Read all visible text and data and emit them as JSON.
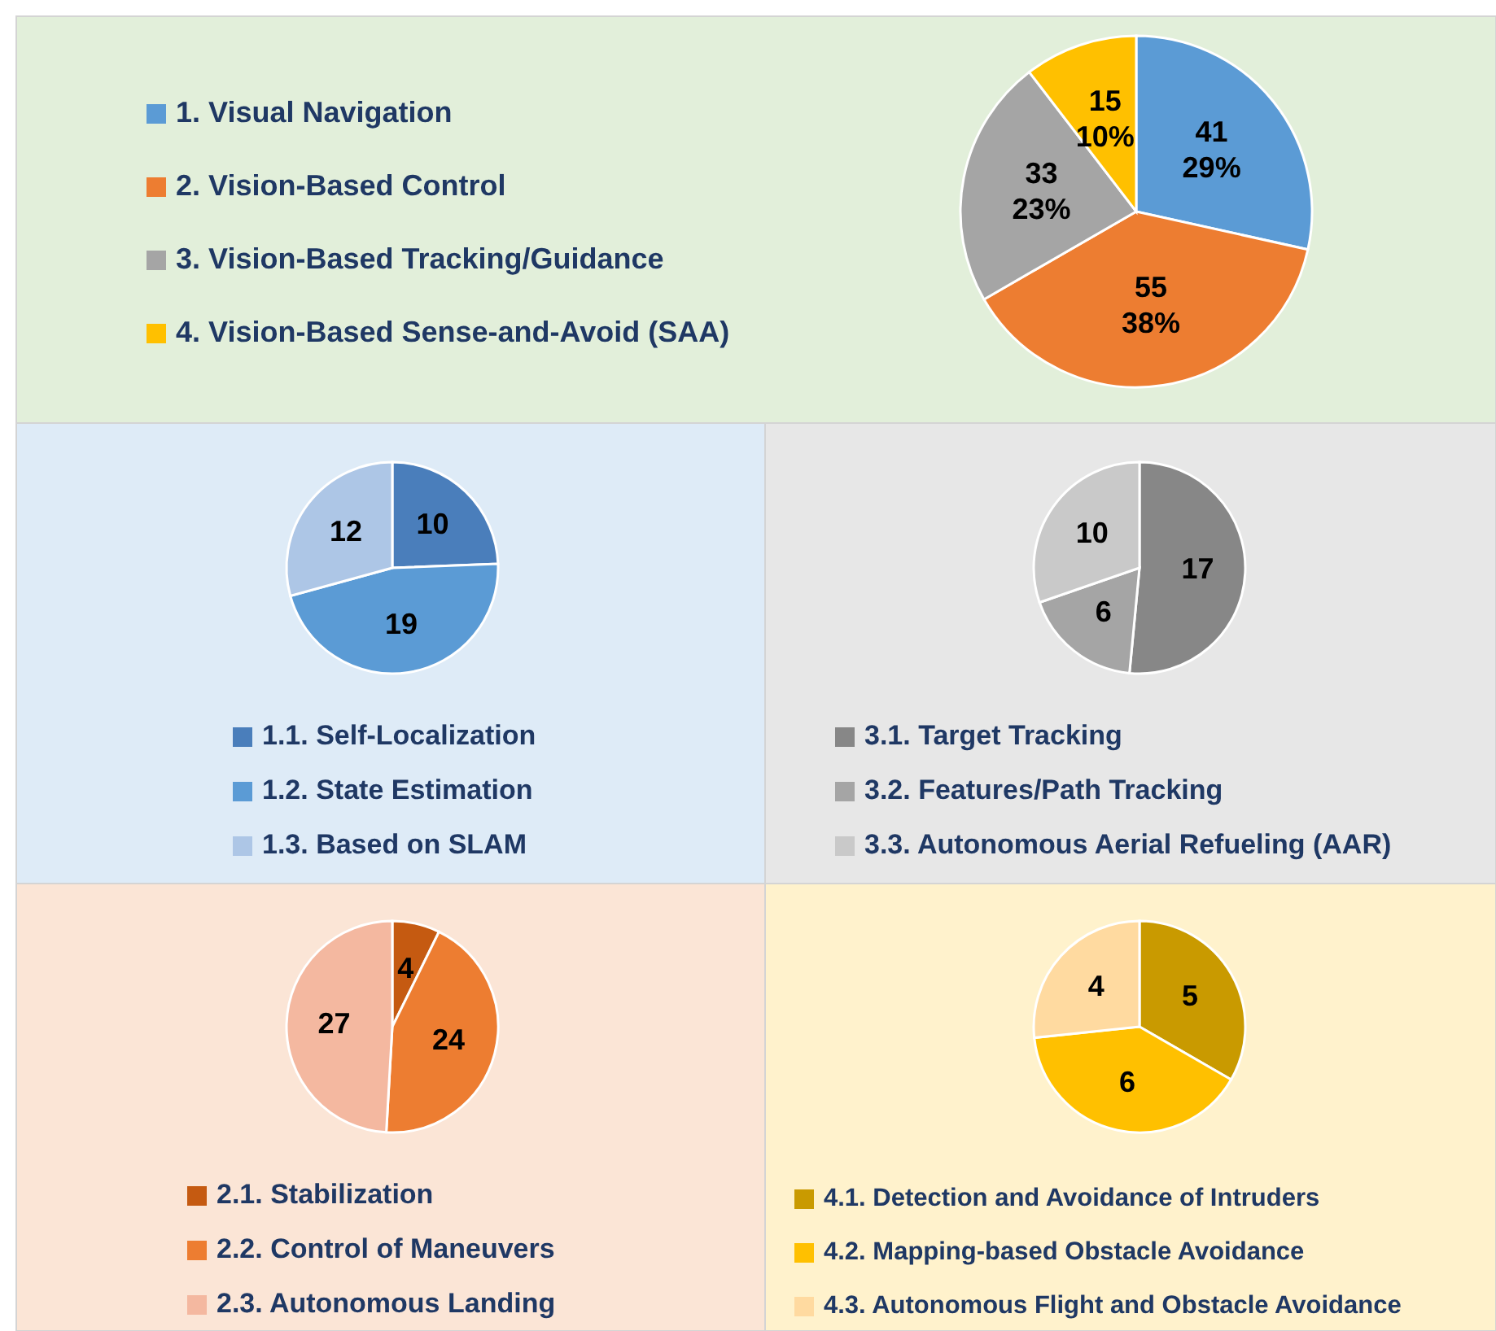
{
  "chart_data": [
    {
      "type": "pie",
      "categories": [
        "1. Visual Navigation",
        "2. Vision-Based Control",
        "3. Vision-Based Tracking/Guidance",
        "4. Vision-Based Sense-and-Avoid (SAA)"
      ],
      "values": [
        41,
        55,
        33,
        15
      ],
      "colors": [
        "#5b9bd5",
        "#ed7d31",
        "#a5a5a5",
        "#ffc000"
      ],
      "value_labels": [
        "41\n29%",
        "55\n38%",
        "33\n23%",
        "15\n10%"
      ],
      "legend": "left"
    },
    {
      "type": "pie",
      "categories": [
        "1.1. Self-Localization",
        "1.2. State Estimation",
        "1.3. Based on SLAM"
      ],
      "values": [
        10,
        19,
        12
      ],
      "colors": [
        "#4a7ebb",
        "#5b9bd5",
        "#adc6e6"
      ],
      "data_labels": true,
      "legend": "bottom"
    },
    {
      "type": "pie",
      "categories": [
        "3.1. Target Tracking",
        "3.2. Features/Path Tracking",
        "3.3. Autonomous Aerial Refueling (AAR)"
      ],
      "values": [
        17,
        6,
        10
      ],
      "colors": [
        "#878787",
        "#a5a5a5",
        "#c9c9c9"
      ],
      "data_labels": true,
      "legend": "bottom"
    },
    {
      "type": "pie",
      "categories": [
        "2.1. Stabilization",
        "2.2. Control of Maneuvers",
        "2.3. Autonomous Landing"
      ],
      "values": [
        4,
        24,
        27
      ],
      "colors": [
        "#c55a11",
        "#ed7d31",
        "#f4b8a0"
      ],
      "data_labels": true,
      "legend": "bottom"
    },
    {
      "type": "pie",
      "categories": [
        "4.1. Detection and Avoidance of Intruders",
        "4.2. Mapping-based Obstacle Avoidance",
        "4.3. Autonomous Flight and Obstacle Avoidance"
      ],
      "values": [
        5,
        6,
        4
      ],
      "colors": [
        "#c99a00",
        "#ffc000",
        "#ffdaa0"
      ],
      "data_labels": true,
      "legend": "bottom"
    }
  ]
}
